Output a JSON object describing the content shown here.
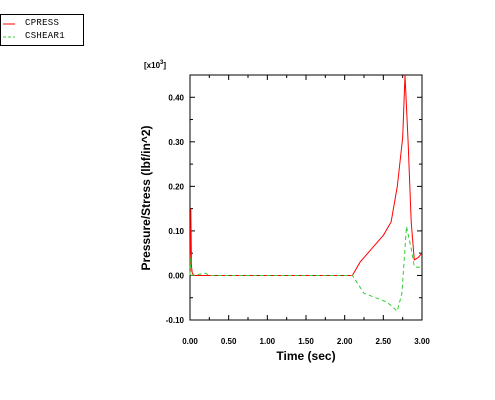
{
  "chart_data": {
    "type": "line",
    "title": "",
    "xlabel": "Time (sec)",
    "ylabel": "Pressure/Stress (lbf/in^2)",
    "multiplier_label": "[x10",
    "multiplier_exp": "3",
    "multiplier_close": "]",
    "xlim": [
      0,
      3
    ],
    "ylim": [
      -0.1,
      0.45
    ],
    "x_ticks": [
      "0.00",
      "0.50",
      "1.00",
      "1.50",
      "2.00",
      "2.50",
      "3.00"
    ],
    "x_tick_values": [
      0,
      0.5,
      1,
      1.5,
      2,
      2.5,
      3
    ],
    "y_ticks": [
      "-0.10",
      "0.00",
      "0.10",
      "0.20",
      "0.30",
      "0.40"
    ],
    "y_tick_values": [
      -0.1,
      0,
      0.1,
      0.2,
      0.3,
      0.4
    ],
    "legend_position": "top-left",
    "grid": false,
    "series": [
      {
        "name": "CPRESS",
        "color": "#ff0000",
        "dash": "solid",
        "points": [
          [
            0.0,
            0.0
          ],
          [
            0.01,
            0.15
          ],
          [
            0.02,
            0.02
          ],
          [
            0.03,
            0.005
          ],
          [
            0.05,
            0.0
          ],
          [
            0.2,
            0.0
          ],
          [
            1.0,
            0.0
          ],
          [
            2.1,
            0.0
          ],
          [
            2.2,
            0.03
          ],
          [
            2.35,
            0.06
          ],
          [
            2.5,
            0.09
          ],
          [
            2.6,
            0.12
          ],
          [
            2.68,
            0.2
          ],
          [
            2.75,
            0.31
          ],
          [
            2.78,
            0.45
          ],
          [
            2.82,
            0.3
          ],
          [
            2.86,
            0.12
          ],
          [
            2.9,
            0.035
          ],
          [
            2.95,
            0.04
          ],
          [
            3.0,
            0.05
          ]
        ]
      },
      {
        "name": "CSHEAR1",
        "color": "#33cc33",
        "dash": "dashed",
        "points": [
          [
            0.0,
            0.0
          ],
          [
            0.01,
            0.04
          ],
          [
            0.02,
            0.0
          ],
          [
            0.2,
            0.005
          ],
          [
            0.25,
            0.0
          ],
          [
            1.0,
            0.0
          ],
          [
            2.1,
            0.0
          ],
          [
            2.25,
            -0.04
          ],
          [
            2.4,
            -0.05
          ],
          [
            2.55,
            -0.06
          ],
          [
            2.68,
            -0.08
          ],
          [
            2.74,
            -0.04
          ],
          [
            2.8,
            0.11
          ],
          [
            2.86,
            0.06
          ],
          [
            2.9,
            0.02
          ],
          [
            2.95,
            0.018
          ],
          [
            3.0,
            0.02
          ]
        ]
      }
    ]
  }
}
